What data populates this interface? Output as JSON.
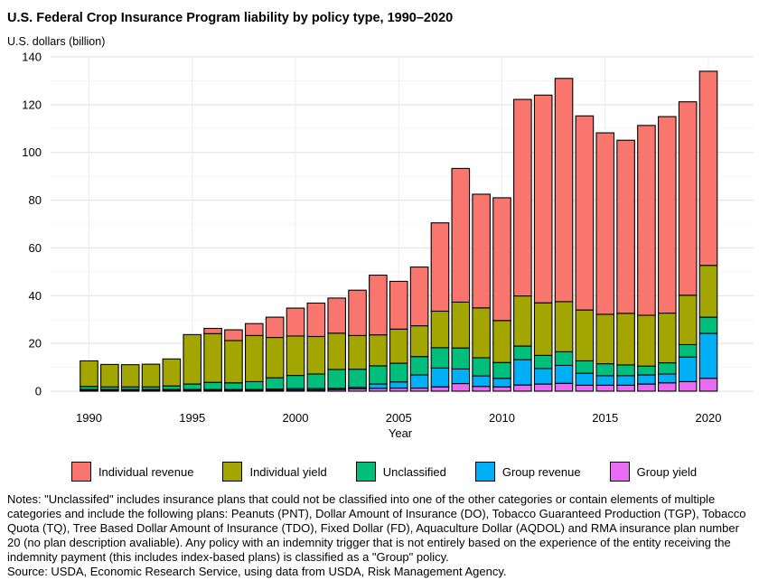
{
  "title": "U.S. Federal Crop Insurance Program liability by policy type, 1990–2020",
  "colors": {
    "Individual revenue": "#f8766d",
    "Individual yield": "#a3a500",
    "Unclassified": "#00bf7d",
    "Group revenue": "#00b0f6",
    "Group yield": "#e76bf3"
  },
  "chart_data": {
    "type": "bar",
    "stacked": true,
    "title": "U.S. Federal Crop Insurance Program liability by policy type, 1990–2020",
    "ylabel": "U.S. dollars (billion)",
    "xlabel": "Year",
    "ylim": [
      0,
      140
    ],
    "yticks": [
      0,
      20,
      40,
      60,
      80,
      100,
      120,
      140
    ],
    "xticks": [
      1990,
      1995,
      2000,
      2005,
      2010,
      2015,
      2020
    ],
    "legend_position": "bottom",
    "categories": [
      1990,
      1991,
      1992,
      1993,
      1994,
      1995,
      1996,
      1997,
      1998,
      1999,
      2000,
      2001,
      2002,
      2003,
      2004,
      2005,
      2006,
      2007,
      2008,
      2009,
      2010,
      2011,
      2012,
      2013,
      2014,
      2015,
      2016,
      2017,
      2018,
      2019,
      2020
    ],
    "series": [
      {
        "name": "Group yield",
        "values": [
          0.3,
          0.3,
          0.3,
          0.3,
          0.3,
          0.3,
          0.3,
          0.3,
          0.3,
          0.4,
          0.5,
          0.5,
          0.7,
          1.0,
          1.2,
          1.3,
          1.3,
          1.8,
          3.2,
          2.0,
          1.8,
          2.6,
          3.0,
          3.3,
          2.5,
          2.5,
          2.5,
          3.0,
          3.5,
          4.0,
          5.4
        ]
      },
      {
        "name": "Group revenue",
        "values": [
          0.4,
          0.4,
          0.4,
          0.4,
          0.4,
          0.4,
          0.4,
          0.4,
          0.4,
          0.5,
          0.6,
          0.6,
          0.5,
          0.6,
          1.8,
          2.6,
          5.5,
          7.9,
          6.1,
          4.4,
          3.6,
          10.6,
          6.5,
          7.5,
          5.0,
          4.0,
          4.0,
          3.8,
          3.7,
          10.3,
          18.8
        ]
      },
      {
        "name": "Unclassified",
        "values": [
          1.3,
          1.1,
          1.1,
          1.1,
          1.5,
          2.3,
          3.0,
          2.8,
          3.3,
          4.7,
          5.5,
          6.1,
          7.9,
          7.6,
          7.6,
          7.8,
          7.7,
          8.5,
          8.8,
          7.6,
          6.6,
          5.7,
          5.5,
          5.7,
          5.2,
          5.0,
          4.5,
          3.7,
          4.7,
          5.2,
          6.8
        ]
      },
      {
        "name": "Individual yield",
        "values": [
          10.7,
          9.4,
          9.3,
          9.5,
          11.3,
          20.7,
          20.4,
          17.7,
          19.3,
          16.9,
          16.5,
          15.7,
          15.2,
          14.1,
          13.0,
          14.3,
          12.9,
          15.3,
          19.2,
          20.9,
          17.6,
          21.0,
          22.0,
          21.0,
          21.3,
          20.7,
          21.6,
          21.3,
          20.8,
          20.7,
          21.7
        ]
      },
      {
        "name": "Individual revenue",
        "values": [
          0,
          0,
          0,
          0,
          0,
          0,
          2.2,
          4.5,
          5.0,
          8.5,
          11.7,
          14.0,
          14.7,
          19.0,
          25.0,
          20.0,
          24.6,
          37.0,
          56.0,
          47.6,
          51.4,
          82.3,
          87.0,
          93.5,
          81.3,
          76.0,
          72.5,
          79.5,
          82.3,
          81.0,
          81.3
        ]
      }
    ]
  },
  "legend_labels": [
    "Individual revenue",
    "Individual yield",
    "Unclassified",
    "Group revenue",
    "Group yield"
  ],
  "notes": {
    "line1": "Notes: \"Unclassifed\" includes insurance plans that could not be classified into one of the other categories or contain elements of multiple categories and include the following plans: Peanuts (PNT), Dollar Amount of Insurance (DO), Tobacco Guaranteed Production (TGP), Tobacco Quota (TQ), Tree Based Dollar Amount of Insurance (TDO), Fixed Dollar (FD), Aquaculture Dollar (AQDOL) and RMA insurance plan number 20 (no plan description avaliable). Any policy with an indemnity trigger that is not entirely based on the experience of the entity receiving the indemnity payment (this includes index-based plans) is classified as a \"Group\" policy.",
    "line2": "Source: USDA, Economic Research Service, using data from USDA, Risk Management Agency."
  }
}
